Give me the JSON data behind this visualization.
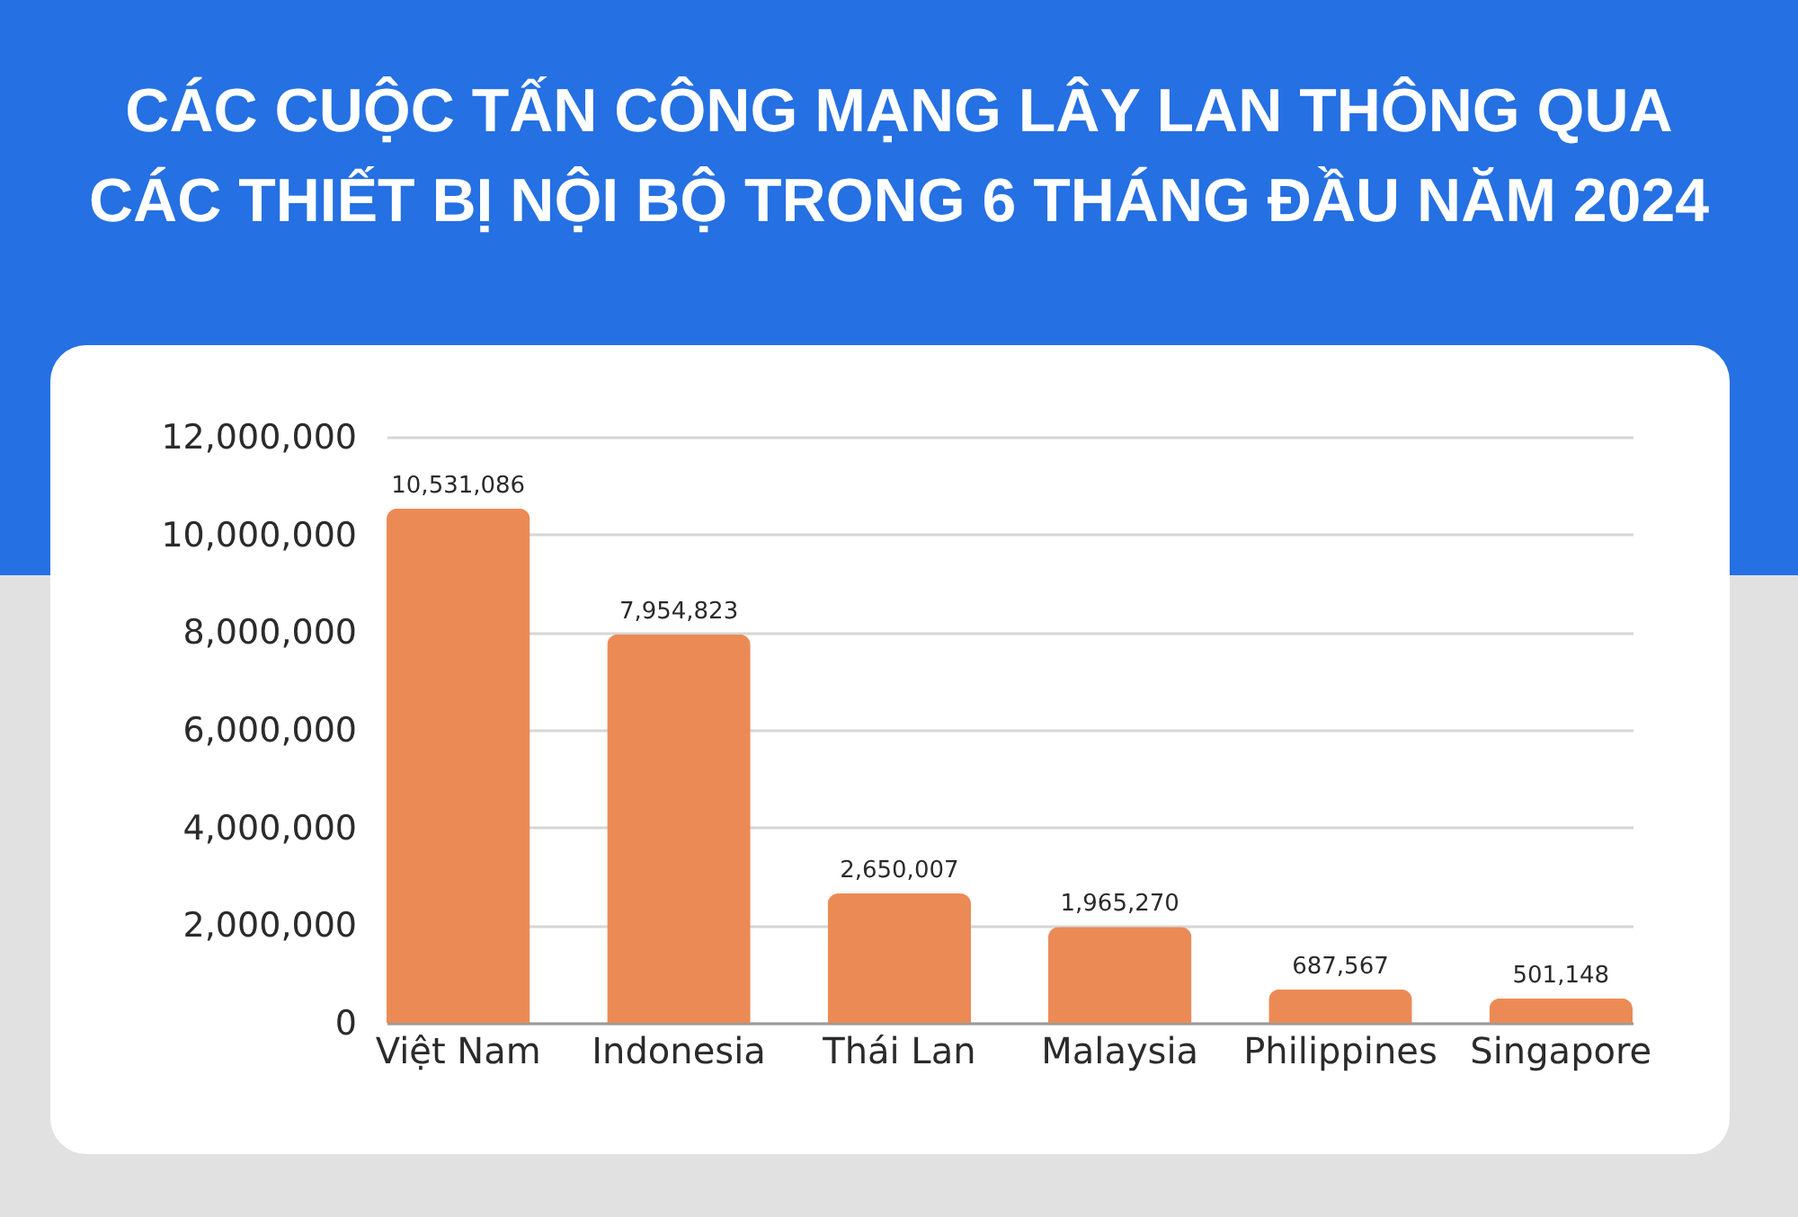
{
  "chart_data": {
    "type": "bar",
    "title": "CÁC CUỘC TẤN CÔNG MẠNG LÂY LAN THÔNG QUA\nCÁC THIẾT BỊ NỘI BỘ TRONG 6 THÁNG ĐẦU NĂM 2024",
    "categories": [
      "Việt Nam",
      "Indonesia",
      "Thái Lan",
      "Malaysia",
      "Philippines",
      "Singapore"
    ],
    "values": [
      10531086,
      7954823,
      2650007,
      1965270,
      687567,
      501148
    ],
    "value_labels": [
      "10,531,086",
      "7,954,823",
      "2,650,007",
      "1,965,270",
      "687,567",
      "501,148"
    ],
    "color": "#ec8a55",
    "ylim": [
      0,
      12000000
    ],
    "yticks": [
      0,
      {
        "value": 2000000,
        "label": "2,000,000"
      },
      {
        "value": 4000000,
        "label": "4,000,000"
      },
      {
        "value": 6000000,
        "label": "6,000,000"
      },
      {
        "value": 8000000,
        "label": "8,000,000"
      },
      {
        "value": 10000000,
        "label": "10,000,000"
      },
      {
        "value": 12000000,
        "label": "12,000,000"
      }
    ],
    "grid": "y"
  }
}
